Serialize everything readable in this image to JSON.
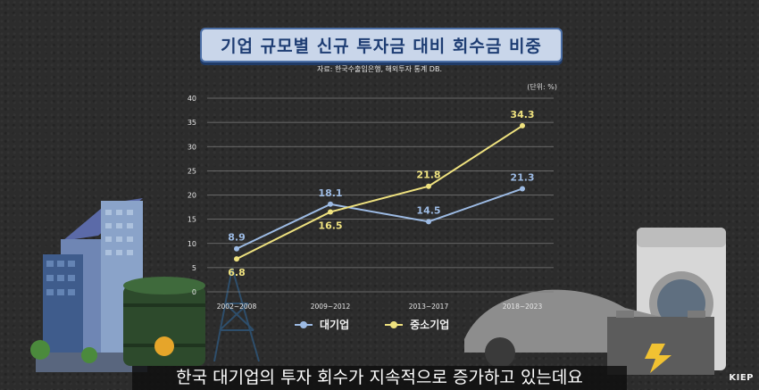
{
  "title": "기업 규모별 신규 투자금 대비 회수금 비중",
  "source": "자료: 한국수출입은행, 해외투자 통계 DB.",
  "unit": "(단위: %)",
  "subtitle": "한국 대기업의 투자 회수가 지속적으로 증가하고 있는데요",
  "logo": "KIEP",
  "chart_data": {
    "type": "line",
    "categories": [
      "2002~2008",
      "2009~2012",
      "2013~2017",
      "2018~2023"
    ],
    "ylim": [
      0,
      40
    ],
    "yticks": [
      0,
      5,
      10,
      15,
      20,
      25,
      30,
      35,
      40
    ],
    "grid": true,
    "legend_position": "bottom",
    "series": [
      {
        "name": "대기업",
        "color": "#9dbbe4",
        "values": [
          8.9,
          18.1,
          14.5,
          21.3
        ],
        "labels": [
          "8.9",
          "18.1",
          "14.5",
          "21.3"
        ],
        "label_pos": [
          "above",
          "above",
          "above",
          "above"
        ]
      },
      {
        "name": "중소기업",
        "color": "#efe27f",
        "values": [
          6.8,
          16.5,
          21.8,
          34.3
        ],
        "labels": [
          "6.8",
          "16.5",
          "21.8",
          "34.3"
        ],
        "label_pos": [
          "below",
          "below",
          "above",
          "above"
        ]
      }
    ]
  }
}
